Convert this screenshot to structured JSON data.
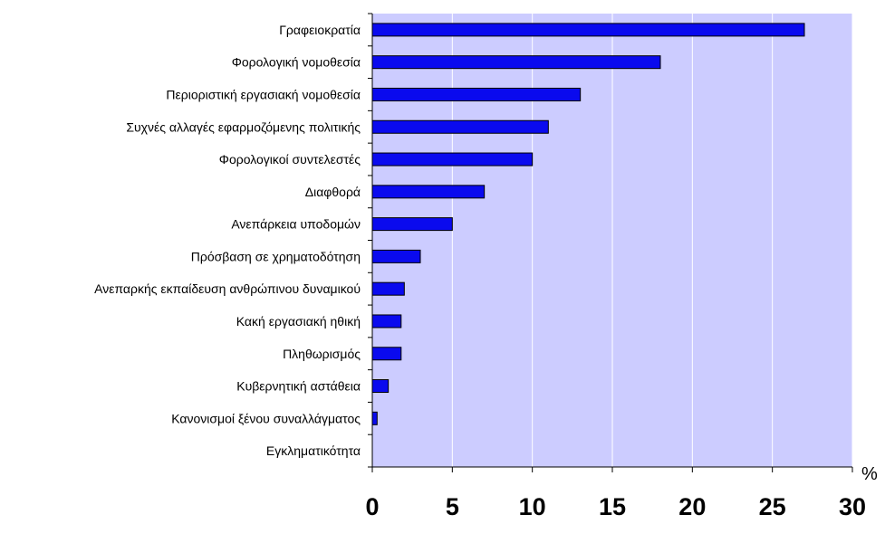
{
  "chart_data": {
    "type": "bar",
    "orientation": "horizontal",
    "title": "",
    "xlabel": "",
    "ylabel": "",
    "x_unit": "%",
    "xlim": [
      0,
      30
    ],
    "x_ticks": [
      0,
      5,
      10,
      15,
      20,
      25,
      30
    ],
    "grid": "vertical gridlines on",
    "legend": "none",
    "categories": [
      "Γραφειοκρατία",
      "Φορολογική νομοθεσία",
      "Περιοριστική εργασιακή νομοθεσία",
      "Συχνές αλλαγές εφαρμοζόμενης πολιτικής",
      "Φορολογικοί συντελεστές",
      "Διαφθορά",
      "Ανεπάρκεια υποδομών",
      "Πρόσβαση σε χρηματοδότηση",
      "Ανεπαρκής εκπαίδευση ανθρώπινου δυναμικού",
      "Κακή εργασιακή ηθική",
      "Πληθωρισμός",
      "Κυβερνητική αστάθεια",
      "Κανονισμοί ξένου συναλλάγματος",
      "Εγκληματικότητα"
    ],
    "values": [
      27,
      18,
      13,
      11,
      10,
      7,
      5,
      3,
      2,
      1.8,
      1.8,
      1,
      0.3,
      0
    ],
    "colors": {
      "bar": "#0a0aee",
      "plot_background": "#ccccff",
      "gridline": "#ffffff",
      "axis": "#000000"
    }
  }
}
